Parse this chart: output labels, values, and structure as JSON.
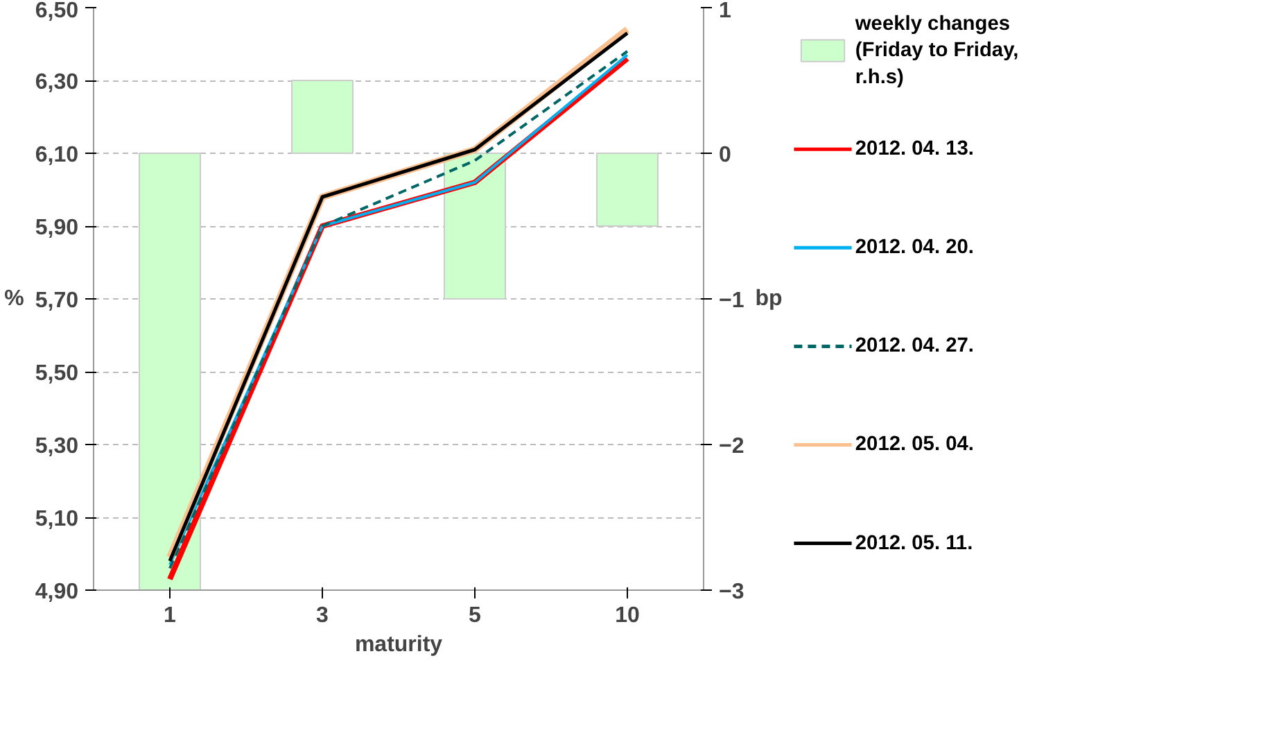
{
  "chart_data": {
    "type": "line",
    "categories": [
      "1",
      "3",
      "5",
      "10"
    ],
    "xlabel": "maturity",
    "ylabel": "%",
    "y2label": "bp",
    "ylim": [
      4.9,
      6.5
    ],
    "yticks": [
      {
        "value": 4.9,
        "label": "4,90"
      },
      {
        "value": 5.1,
        "label": "5,10"
      },
      {
        "value": 5.3,
        "label": "5,30"
      },
      {
        "value": 5.5,
        "label": "5,50"
      },
      {
        "value": 5.7,
        "label": "5,70"
      },
      {
        "value": 5.9,
        "label": "5,90"
      },
      {
        "value": 6.1,
        "label": "6,10"
      },
      {
        "value": 6.3,
        "label": "6,30"
      },
      {
        "value": 6.5,
        "label": "6,50"
      }
    ],
    "y2lim": [
      -3,
      1
    ],
    "y2ticks": [
      -3,
      -2,
      -1,
      0,
      1
    ],
    "grid": "y",
    "legend": "right",
    "marker": "none",
    "series": [
      {
        "name": "weekly changes (Friday to Friday, r.h.s)",
        "type": "bar",
        "axis": "y2",
        "color": "#ccffcc",
        "values": [
          -3,
          0.5,
          -1,
          -0.5
        ]
      },
      {
        "name": "2012. 04. 13.",
        "color": "#ff0000",
        "values": [
          4.93,
          5.9,
          6.02,
          6.36
        ]
      },
      {
        "name": "2012. 04. 20.",
        "color": "#00b0f0",
        "values": [
          4.97,
          5.9,
          6.02,
          6.37
        ]
      },
      {
        "name": "2012. 04. 27.",
        "color": "#006666",
        "line_style": "dashed",
        "values": [
          4.96,
          5.9,
          6.08,
          6.38
        ]
      },
      {
        "name": "2012. 05. 04.",
        "color": "#fac090",
        "values": [
          4.99,
          5.98,
          6.11,
          6.44
        ]
      },
      {
        "name": "2012. 05. 11.",
        "color": "#000000",
        "values": [
          4.98,
          5.98,
          6.11,
          6.43
        ]
      }
    ]
  }
}
